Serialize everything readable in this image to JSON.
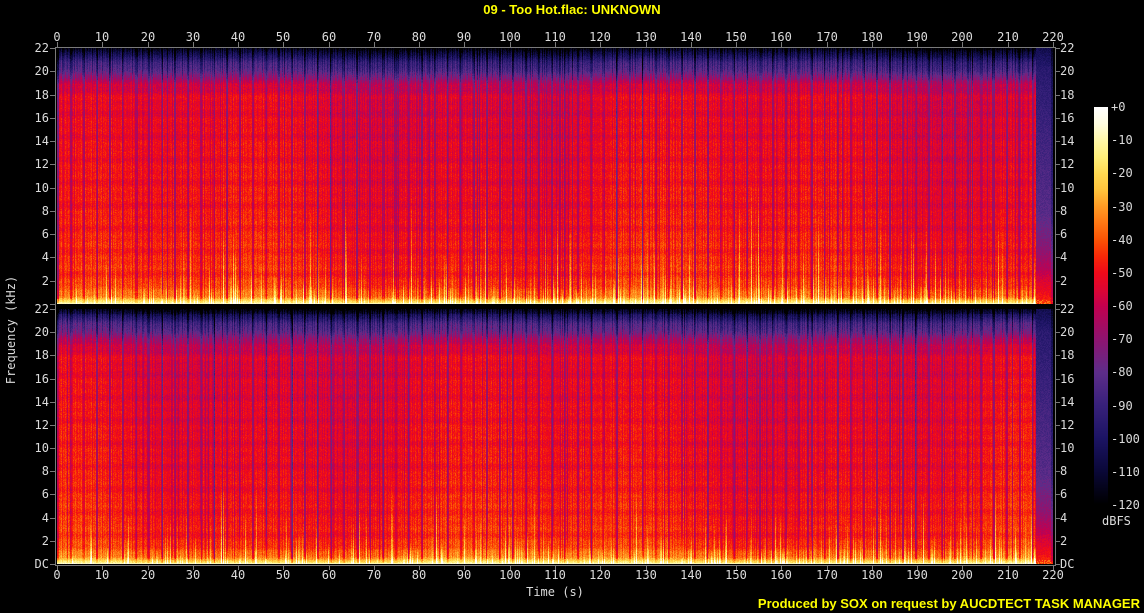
{
  "title": "09 - Too Hot.flac: UNKNOWN",
  "credit": "Produced by SOX on request by AUCDTECT TASK MANAGER",
  "colors": {
    "background": "#000000",
    "title_text": "#ffff00",
    "credit_text": "#ffff00",
    "tick_text": "#dcdcdc",
    "axis_line": "#7a7a7a"
  },
  "axes": {
    "time": {
      "label": "Time (s)",
      "tick_labels": [
        "0",
        "10",
        "20",
        "30",
        "40",
        "50",
        "60",
        "70",
        "80",
        "90",
        "100",
        "110",
        "120",
        "130",
        "140",
        "150",
        "160",
        "170",
        "180",
        "190",
        "200",
        "210",
        "220"
      ],
      "min": 0,
      "max": 220
    },
    "frequency": {
      "label": "Frequency (kHz)",
      "tick_labels": [
        "22",
        "20",
        "18",
        "16",
        "14",
        "12",
        "10",
        "8",
        "6",
        "4",
        "2"
      ],
      "dc_label": "DC",
      "min_khz": 0,
      "max_khz": 22
    },
    "colorbar": {
      "unit_label": "dBFS",
      "tick_labels": [
        "+0",
        "-10",
        "-20",
        "-30",
        "-40",
        "-50",
        "-60",
        "-70",
        "-80",
        "-90",
        "-100",
        "-110",
        "-120"
      ]
    }
  },
  "chart_data": {
    "type": "heatmap",
    "subtype": "audio-spectrogram",
    "title": "09 - Too Hot.flac: UNKNOWN",
    "xlabel": "Time (s)",
    "ylabel": "Frequency (kHz)",
    "zlabel": "dBFS",
    "x_range_s": [
      0,
      220
    ],
    "y_range_khz": [
      0,
      22
    ],
    "z_range_dbfs": [
      -120,
      0
    ],
    "channels": [
      "left",
      "right"
    ],
    "legend_position": "right-colorbar",
    "grid": false,
    "events": {
      "music_end_s": 216.2,
      "fade_out_end_s": 220,
      "sparse_streaks_until_s": 18.5
    },
    "colormap": [
      {
        "db": -120,
        "color": "#000000"
      },
      {
        "db": -110,
        "color": "#0a0838"
      },
      {
        "db": -100,
        "color": "#1c1464"
      },
      {
        "db": -90,
        "color": "#38217b"
      },
      {
        "db": -80,
        "color": "#5e2d8a"
      },
      {
        "db": -70,
        "color": "#8f1470"
      },
      {
        "db": -60,
        "color": "#c3004f"
      },
      {
        "db": -55,
        "color": "#dc0633"
      },
      {
        "db": -50,
        "color": "#f00a1a"
      },
      {
        "db": -45,
        "color": "#f82808"
      },
      {
        "db": -40,
        "color": "#fb5305"
      },
      {
        "db": -35,
        "color": "#ff7714"
      },
      {
        "db": -30,
        "color": "#ff9a24"
      },
      {
        "db": -25,
        "color": "#ffc33c"
      },
      {
        "db": -20,
        "color": "#ffd952"
      },
      {
        "db": -15,
        "color": "#ffef7a"
      },
      {
        "db": -10,
        "color": "#fff7a8"
      },
      {
        "db": -5,
        "color": "#fffde0"
      },
      {
        "db": 0,
        "color": "#ffffff"
      }
    ],
    "frequency_profile_db": [
      [
        22.0,
        -114
      ],
      [
        21.5,
        -102
      ],
      [
        20.8,
        -86
      ],
      [
        20.0,
        -78
      ],
      [
        19.4,
        -66
      ],
      [
        18.9,
        -57
      ],
      [
        18.0,
        -52
      ],
      [
        14.0,
        -50
      ],
      [
        11.0,
        -48.5
      ],
      [
        8.0,
        -47.5
      ],
      [
        6.0,
        -46
      ],
      [
        4.0,
        -44.5
      ],
      [
        2.6,
        -43.5
      ],
      [
        1.4,
        -40
      ],
      [
        0.8,
        -33
      ],
      [
        0.45,
        -24
      ],
      [
        0.2,
        -15
      ],
      [
        0.05,
        -10
      ],
      [
        0.0,
        -9
      ]
    ],
    "fade_out_profile_db": [
      [
        22,
        -105
      ],
      [
        20,
        -95
      ],
      [
        14,
        -88
      ],
      [
        8,
        -82
      ],
      [
        5,
        -72
      ],
      [
        3,
        -62
      ],
      [
        1.8,
        -54
      ],
      [
        0.9,
        -50
      ],
      [
        0.4,
        -46
      ],
      [
        0,
        -42
      ]
    ],
    "description": "Stereo SoX spectrogram of a 220 s track. Both channels show near full-bandwidth energy to 22 kHz (red body ~-45 to -55 dBFS), a dark band above ~20 kHz, dense percussive vertical striping, yellow/orange harmonic streaks below ~10 kHz, a bright near-white band at DC-1 kHz, and a quiet purple fade-out after ~216 s."
  }
}
